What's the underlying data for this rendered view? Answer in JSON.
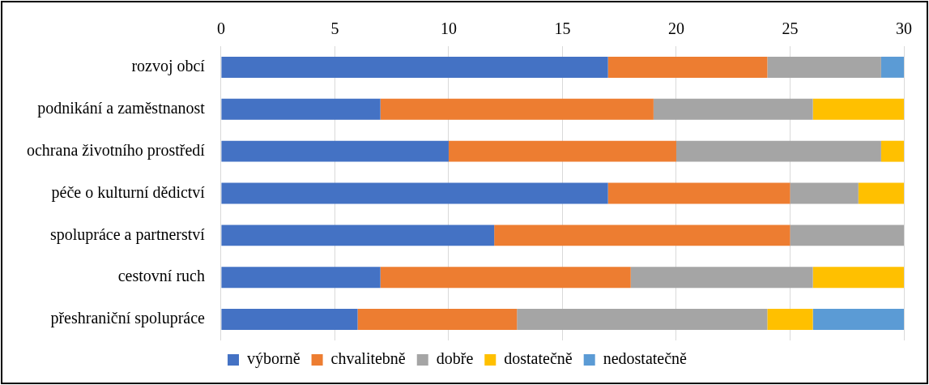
{
  "chart_data": {
    "type": "bar",
    "orientation": "horizontal",
    "stacked": true,
    "categories": [
      "rozvoj obcí",
      "podnikání a zaměstnanost",
      "ochrana životního prostředí",
      "péče o kulturní dědictví",
      "spolupráce a partnerství",
      "cestovní ruch",
      "přeshraniční spolupráce"
    ],
    "series": [
      {
        "name": "výborně",
        "color": "#4472c4",
        "values": [
          17,
          7,
          10,
          17,
          12,
          7,
          6
        ]
      },
      {
        "name": "chvalitebně",
        "color": "#ed7d31",
        "values": [
          7,
          12,
          10,
          8,
          13,
          11,
          7
        ]
      },
      {
        "name": "dobře",
        "color": "#a5a5a5",
        "values": [
          5,
          7,
          9,
          3,
          5,
          8,
          11
        ]
      },
      {
        "name": "dostatečně",
        "color": "#ffc000",
        "values": [
          0,
          4,
          1,
          2,
          0,
          4,
          2
        ]
      },
      {
        "name": "nedostatečně",
        "color": "#5b9bd5",
        "values": [
          1,
          0,
          0,
          0,
          0,
          0,
          4
        ]
      }
    ],
    "xlim": [
      0,
      30
    ],
    "xticks": [
      0,
      5,
      10,
      15,
      20,
      25,
      30
    ],
    "grid": "x",
    "legend": "bottom"
  }
}
